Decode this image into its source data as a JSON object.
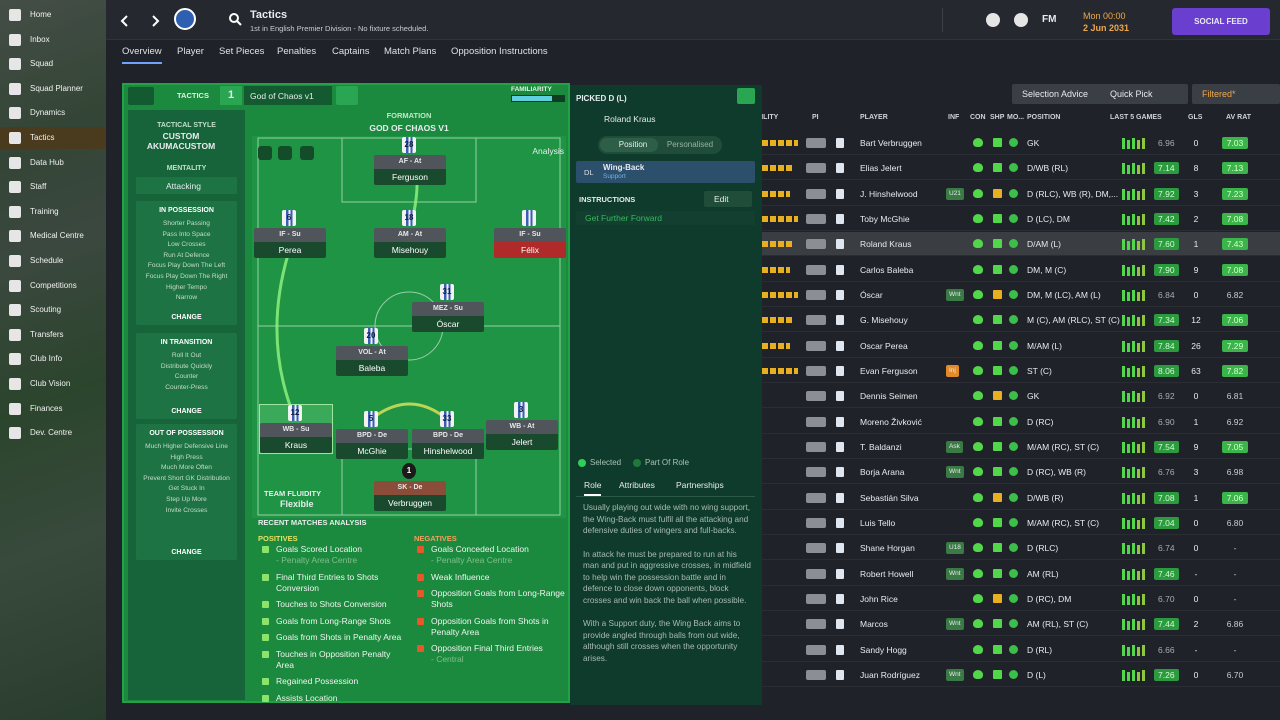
{
  "sidebar": {
    "items": [
      "Home",
      "Inbox",
      "Squad",
      "Squad Planner",
      "Dynamics",
      "Tactics",
      "Data Hub",
      "Staff",
      "Training",
      "Medical Centre",
      "Schedule",
      "Competitions",
      "Scouting",
      "Transfers",
      "Club Info",
      "Club Vision",
      "Finances",
      "Dev. Centre"
    ],
    "active": 5
  },
  "topbar": {
    "title": "Tactics",
    "subtitle": "1st in English Premier Division - No fixture scheduled.",
    "brand": "FM",
    "time": "Mon 00:00",
    "date": "2 Jun 2031",
    "social_feed": "SOCIAL FEED"
  },
  "tabs": [
    "Overview",
    "Player",
    "Set Pieces",
    "Penalties",
    "Captains",
    "Match Plans",
    "Opposition Instructions"
  ],
  "tactic": {
    "label": "TACTICS",
    "slot": "1",
    "name": "God of Chaos v1",
    "familiarity": "FAMILIARITY",
    "style_label": "TACTICAL STYLE",
    "style": "CUSTOM AKUMACUSTOM",
    "mentality_label": "MENTALITY",
    "mentality": "Attacking",
    "change": "CHANGE",
    "in_possession": {
      "title": "IN POSSESSION",
      "items": [
        "Shorter Passing",
        "Pass Into Space",
        "Low Crosses",
        "Run At Defence",
        "Focus Play Down The Left",
        "Focus Play Down The Right",
        "Higher Tempo",
        "Narrow"
      ]
    },
    "in_transition": {
      "title": "IN TRANSITION",
      "items": [
        "Roll It Out",
        "Distribute Quickly",
        "Counter",
        "Counter-Press"
      ]
    },
    "out_of_possession": {
      "title": "OUT OF POSSESSION",
      "items": [
        "Much Higher Defensive Line",
        "High Press",
        "Much More Often",
        "Prevent Short GK Distribution",
        "Get Stuck In",
        "Step Up More",
        "Invite Crosses"
      ]
    },
    "formation_label": "FORMATION",
    "formation": "GOD OF CHAOS V1",
    "analysis": "Analysis",
    "fluidity_label": "TEAM FLUIDITY",
    "fluidity": "Flexible"
  },
  "pitch": {
    "players": [
      {
        "number": "28",
        "role": "AF - At",
        "name": "Ferguson"
      },
      {
        "number": "6",
        "role": "IF - Su",
        "name": "Perea"
      },
      {
        "number": "18",
        "role": "AM - At",
        "name": "Misehouy"
      },
      {
        "role": "IF - Su",
        "name": "Félix"
      },
      {
        "number": "31",
        "role": "MEZ - Su",
        "name": "Óscar"
      },
      {
        "number": "20",
        "role": "VOL - At",
        "name": "Baleba"
      },
      {
        "number": "12",
        "role": "WB - Su",
        "name": "Kraus"
      },
      {
        "number": "5",
        "role": "BPD - De",
        "name": "McGhie"
      },
      {
        "number": "33",
        "role": "BPD - De",
        "name": "Hinshelwood"
      },
      {
        "number": "3",
        "role": "WB - At",
        "name": "Jelert"
      },
      {
        "number": "1",
        "role": "SK - De",
        "name": "Verbruggen"
      }
    ]
  },
  "analysis": {
    "title": "RECENT MATCHES ANALYSIS",
    "positives_label": "POSITIVES",
    "negatives_label": "NEGATIVES",
    "positives": [
      {
        "text": "Goals Scored Location",
        "sub": "- Penalty Area Centre"
      },
      {
        "text": "Final Third Entries to Shots Conversion"
      },
      {
        "text": "Touches to Shots Conversion"
      },
      {
        "text": "Goals from Long-Range Shots"
      },
      {
        "text": "Goals from Shots in Penalty Area"
      },
      {
        "text": "Touches in Opposition Penalty Area"
      },
      {
        "text": "Regained Possession"
      },
      {
        "text": "Assists Location"
      }
    ],
    "negatives": [
      {
        "text": "Goals Conceded Location",
        "sub": "- Penalty Area Centre"
      },
      {
        "text": "Weak Influence"
      },
      {
        "text": "Opposition Goals from Long-Range Shots"
      },
      {
        "text": "Opposition Goals from Shots in Penalty Area"
      },
      {
        "text": "Opposition Final Third Entries",
        "sub": "- Central"
      }
    ]
  },
  "picked": {
    "title": "PICKED D (L)",
    "player": "Roland Kraus",
    "toggle": [
      "Position",
      "Personalised"
    ],
    "position": "DL",
    "role": "Wing-Back",
    "duty": "Support",
    "instructions_label": "INSTRUCTIONS",
    "edit": "Edit",
    "instructions": [
      "Get Further Forward"
    ],
    "legend": [
      "Selected",
      "Part Of Role"
    ],
    "tabs": [
      "Role",
      "Attributes",
      "Partnerships"
    ],
    "description": [
      "Usually playing out wide with no wing support, the Wing-Back must fulfil all the attacking and defensive duties of wingers and full-backs.",
      "In attack he must be prepared to run at his man and put in aggressive crosses, in midfield to help win the possession battle and in defence to close down opponents, block crosses and win back the ball when possible.",
      "With a Support duty, the Wing Back aims to provide angled through balls from out wide, although still crosses when the opportunity arises."
    ]
  },
  "squad": {
    "buttons": [
      "Selection Advice",
      "Quick Pick",
      "Filtered*"
    ],
    "headers": [
      "ROLE ABILITY",
      "PI",
      "PLAYER",
      "INF",
      "CON",
      "SHP",
      "MO...",
      "POSITION",
      "LAST 5 GAMES",
      "GLS",
      "AV RAT"
    ],
    "rows": [
      {
        "name": "Bart Verbruggen",
        "position": "GK",
        "last5": "6.96",
        "gls": "0",
        "avrat": "7.03"
      },
      {
        "name": "Elias Jelert",
        "position": "D/WB (RL)",
        "last5": "7.14",
        "gls": "8",
        "avrat": "7.13"
      },
      {
        "name": "J. Hinshelwood",
        "inf": "U21",
        "position": "D (RLC), WB (R), DM,...",
        "last5": "7.92",
        "gls": "3",
        "avrat": "7.23"
      },
      {
        "name": "Toby McGhie",
        "position": "D (LC), DM",
        "last5": "7.42",
        "gls": "2",
        "avrat": "7.08"
      },
      {
        "name": "Roland Kraus",
        "position": "D/AM (L)",
        "last5": "7.60",
        "gls": "1",
        "avrat": "7.43"
      },
      {
        "name": "Carlos Baleba",
        "position": "DM, M (C)",
        "last5": "7.90",
        "gls": "9",
        "avrat": "7.08"
      },
      {
        "name": "Óscar",
        "inf": "Wnt",
        "position": "DM, M (LC), AM (L)",
        "last5": "6.84",
        "gls": "0",
        "avrat": "6.82"
      },
      {
        "name": "G. Misehouy",
        "position": "M (C), AM (RLC), ST (C)",
        "last5": "7.34",
        "gls": "12",
        "avrat": "7.06"
      },
      {
        "name": "Oscar Perea",
        "position": "M/AM (L)",
        "last5": "7.84",
        "gls": "26",
        "avrat": "7.29"
      },
      {
        "name": "Evan Ferguson",
        "inf": "Inj",
        "position": "ST (C)",
        "last5": "8.06",
        "gls": "63",
        "avrat": "7.82"
      },
      {
        "name": "Dennis Seimen",
        "position": "GK",
        "last5": "6.92",
        "gls": "0",
        "avrat": "6.81"
      },
      {
        "name": "Moreno Živković",
        "position": "D (RC)",
        "last5": "6.90",
        "gls": "1",
        "avrat": "6.92"
      },
      {
        "name": "T. Baldanzi",
        "inf": "Ask",
        "position": "M/AM (RC), ST (C)",
        "last5": "7.54",
        "gls": "9",
        "avrat": "7.05"
      },
      {
        "name": "Borja Arana",
        "inf": "Wnt",
        "position": "D (RC), WB (R)",
        "last5": "6.76",
        "gls": "3",
        "avrat": "6.98"
      },
      {
        "name": "Sebastián Silva",
        "position": "D/WB (R)",
        "last5": "7.08",
        "gls": "1",
        "avrat": "7.06"
      },
      {
        "name": "Luis Tello",
        "position": "M/AM (RC), ST (C)",
        "last5": "7.04",
        "gls": "0",
        "avrat": "6.80"
      },
      {
        "name": "Shane Horgan",
        "inf": "U18",
        "position": "D (RLC)",
        "last5": "6.74",
        "gls": "0",
        "avrat": "-"
      },
      {
        "name": "Robert Howell",
        "inf": "Wnt",
        "position": "AM (RL)",
        "last5": "7.46",
        "gls": "-",
        "avrat": "-"
      },
      {
        "name": "John Rice",
        "position": "D (RC), DM",
        "last5": "6.70",
        "gls": "0",
        "avrat": "-"
      },
      {
        "name": "Marcos",
        "inf": "Wnt",
        "position": "AM (RL), ST (C)",
        "last5": "7.44",
        "gls": "2",
        "avrat": "6.86"
      },
      {
        "name": "Sandy Hogg",
        "position": "D (RL)",
        "last5": "6.66",
        "gls": "-",
        "avrat": "-"
      },
      {
        "name": "Juan Rodríguez",
        "inf": "Wnt",
        "position": "D (L)",
        "last5": "7.26",
        "gls": "0",
        "avrat": "6.70"
      }
    ],
    "highlight": 4
  }
}
